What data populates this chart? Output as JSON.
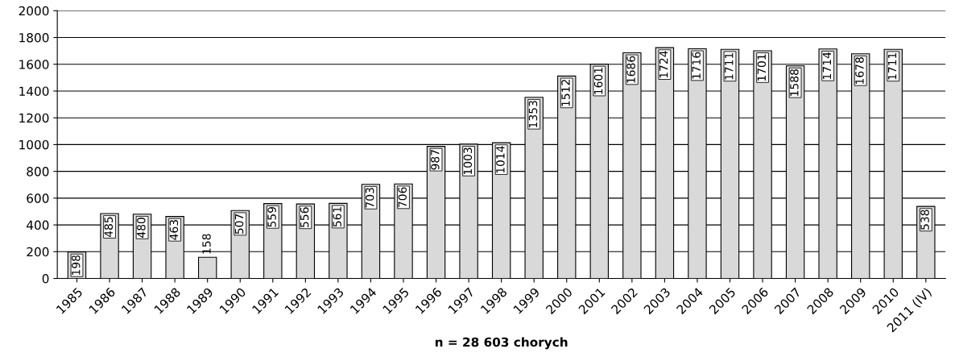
{
  "chart_data": {
    "type": "bar",
    "xlabel": "n = 28 603 chorych",
    "categories": [
      "1985",
      "1986",
      "1987",
      "1988",
      "1989",
      "1990",
      "1991",
      "1992",
      "1993",
      "1994",
      "1995",
      "1996",
      "1997",
      "1998",
      "1999",
      "2000",
      "2001",
      "2002",
      "2003",
      "2004",
      "2005",
      "2006",
      "2007",
      "2008",
      "2009",
      "2010",
      "2011 (IV)"
    ],
    "values": [
      198,
      485,
      480,
      463,
      158,
      507,
      559,
      556,
      561,
      703,
      706,
      987,
      1003,
      1014,
      1353,
      1512,
      1601,
      1686,
      1724,
      1716,
      1711,
      1701,
      1588,
      1714,
      1678,
      1711,
      538
    ],
    "color": "#d9d9d9",
    "ylim": [
      0,
      2000
    ],
    "yticks": [
      0,
      200,
      400,
      600,
      800,
      1000,
      1200,
      1400,
      1600,
      1800,
      2000
    ],
    "grid": "y",
    "data_labels": true
  }
}
